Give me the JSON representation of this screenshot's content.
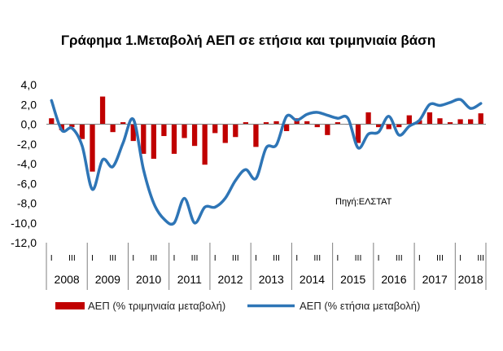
{
  "chart_data": {
    "type": "bar+line",
    "title": "Γράφημα 1.Μεταβολή ΑΕΠ σε ετήσια και τριμηνιαία βάση",
    "source_note": "Πηγή:ΕΛΣΤΑΤ",
    "ylim": [
      -12.0,
      4.0
    ],
    "y_ticks": [
      "4,0",
      "2,0",
      "0,0",
      "-2,0",
      "-4,0",
      "-6,0",
      "-8,0",
      "-10,0",
      "-12,0"
    ],
    "y_tick_values": [
      4,
      2,
      0,
      -2,
      -4,
      -6,
      -8,
      -10,
      -12
    ],
    "years": [
      "2008",
      "2009",
      "2010",
      "2011",
      "2012",
      "2013",
      "2014",
      "2015",
      "2016",
      "2017",
      "2018"
    ],
    "quarter_marks": [
      "I",
      "III"
    ],
    "categories": [
      "2008 Q1",
      "2008 Q2",
      "2008 Q3",
      "2008 Q4",
      "2009 Q1",
      "2009 Q2",
      "2009 Q3",
      "2009 Q4",
      "2010 Q1",
      "2010 Q2",
      "2010 Q3",
      "2010 Q4",
      "2011 Q1",
      "2011 Q2",
      "2011 Q3",
      "2011 Q4",
      "2012 Q1",
      "2012 Q2",
      "2012 Q3",
      "2012 Q4",
      "2013 Q1",
      "2013 Q2",
      "2013 Q3",
      "2013 Q4",
      "2014 Q1",
      "2014 Q2",
      "2014 Q3",
      "2014 Q4",
      "2015 Q1",
      "2015 Q2",
      "2015 Q3",
      "2015 Q4",
      "2016 Q1",
      "2016 Q2",
      "2016 Q3",
      "2016 Q4",
      "2017 Q1",
      "2017 Q2",
      "2017 Q3",
      "2017 Q4",
      "2018 Q1",
      "2018 Q2",
      "2018 Q3"
    ],
    "series": [
      {
        "name": "ΑΕΠ (% τριμηνιαία μεταβολή)",
        "type": "bar",
        "color": "#c00000",
        "values": [
          0.6,
          -0.6,
          -0.3,
          -1.5,
          -4.8,
          2.8,
          -0.8,
          0.2,
          -1.7,
          -3.0,
          -3.5,
          -1.2,
          -3.0,
          -1.4,
          -2.2,
          -4.1,
          -0.9,
          -1.9,
          -1.3,
          0.2,
          -2.3,
          0.2,
          0.3,
          -0.7,
          0.6,
          0.3,
          -0.3,
          -1.1,
          0.2,
          0.0,
          -1.9,
          1.2,
          -0.3,
          -0.5,
          -0.3,
          0.9,
          0.4,
          1.2,
          0.6,
          0.2,
          0.5,
          0.5,
          1.1
        ]
      },
      {
        "name": "ΑΕΠ (% ετήσια μεταβολή)",
        "type": "line",
        "color": "#2e75b6",
        "values": [
          2.4,
          -0.6,
          -0.4,
          -2.2,
          -6.6,
          -3.6,
          -4.3,
          -1.9,
          0.5,
          -4.6,
          -8.0,
          -9.6,
          -10.0,
          -7.5,
          -10.0,
          -8.4,
          -8.4,
          -7.5,
          -5.7,
          -4.6,
          -5.5,
          -2.4,
          -2.1,
          0.8,
          0.4,
          1.0,
          1.2,
          0.9,
          0.6,
          0.6,
          -2.4,
          -1.0,
          -0.8,
          0.8,
          -1.1,
          -0.2,
          0.4,
          2.0,
          1.9,
          2.2,
          2.5,
          1.6,
          2.1
        ]
      }
    ],
    "legend_position": "bottom",
    "grid": false
  }
}
